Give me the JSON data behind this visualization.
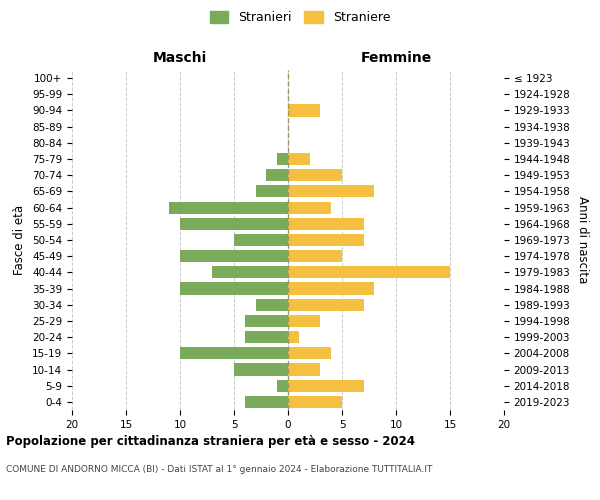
{
  "age_groups": [
    "100+",
    "95-99",
    "90-94",
    "85-89",
    "80-84",
    "75-79",
    "70-74",
    "65-69",
    "60-64",
    "55-59",
    "50-54",
    "45-49",
    "40-44",
    "35-39",
    "30-34",
    "25-29",
    "20-24",
    "15-19",
    "10-14",
    "5-9",
    "0-4"
  ],
  "birth_years": [
    "≤ 1923",
    "1924-1928",
    "1929-1933",
    "1934-1938",
    "1939-1943",
    "1944-1948",
    "1949-1953",
    "1954-1958",
    "1959-1963",
    "1964-1968",
    "1969-1973",
    "1974-1978",
    "1979-1983",
    "1984-1988",
    "1989-1993",
    "1994-1998",
    "1999-2003",
    "2004-2008",
    "2009-2013",
    "2014-2018",
    "2019-2023"
  ],
  "males": [
    0,
    0,
    0,
    0,
    0,
    1,
    2,
    3,
    11,
    10,
    5,
    10,
    7,
    10,
    3,
    4,
    4,
    10,
    5,
    1,
    4
  ],
  "females": [
    0,
    0,
    3,
    0,
    0,
    2,
    5,
    8,
    4,
    7,
    7,
    5,
    15,
    8,
    7,
    3,
    1,
    4,
    3,
    7,
    5
  ],
  "male_color": "#7aab5a",
  "female_color": "#f5c040",
  "background_color": "#ffffff",
  "grid_color": "#cccccc",
  "title": "Popolazione per cittadinanza straniera per età e sesso - 2024",
  "subtitle": "COMUNE DI ANDORNO MICCA (BI) - Dati ISTAT al 1° gennaio 2024 - Elaborazione TUTTITALIA.IT",
  "xlabel_left": "Maschi",
  "xlabel_right": "Femmine",
  "ylabel_left": "Fasce di età",
  "ylabel_right": "Anni di nascita",
  "legend_male": "Stranieri",
  "legend_female": "Straniere",
  "xlim": 20,
  "bar_height": 0.75
}
